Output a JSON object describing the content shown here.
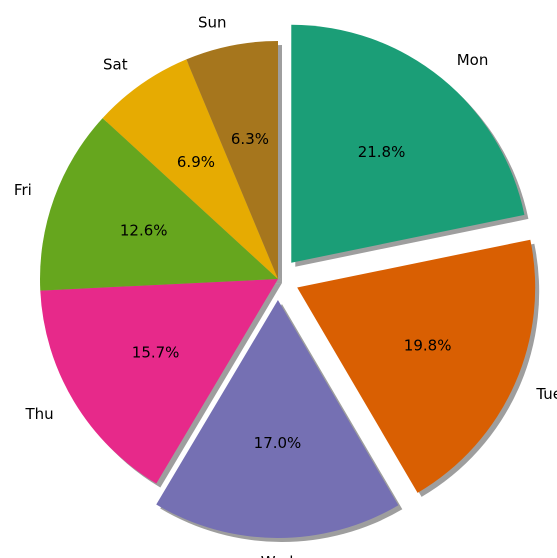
{
  "chart_data": {
    "type": "pie",
    "title": "",
    "categories": [
      "Mon",
      "Tue",
      "Wed",
      "Thu",
      "Fri",
      "Sat",
      "Sun"
    ],
    "values": [
      21.8,
      19.8,
      17.0,
      15.7,
      12.6,
      6.9,
      6.3
    ],
    "value_labels": [
      "21.8%",
      "19.8%",
      "17.0%",
      "15.7%",
      "12.6%",
      "6.9%",
      "6.3%"
    ],
    "colors": [
      "#1b9e77",
      "#d95f02",
      "#7570b3",
      "#e7298a",
      "#66a61e",
      "#e6ab02",
      "#a6761d"
    ],
    "exploded": [
      true,
      true,
      true,
      false,
      false,
      false,
      false
    ],
    "shadow": true,
    "start_angle_deg": 90,
    "direction": "clockwise"
  }
}
